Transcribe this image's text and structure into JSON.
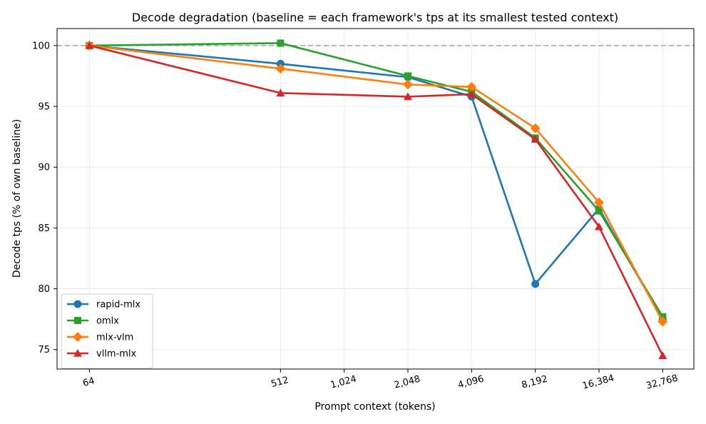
{
  "chart_data": {
    "type": "line",
    "title": "Decode degradation (baseline = each framework's tps at its smallest tested context)",
    "xlabel": "Prompt context (tokens)",
    "ylabel": "Decode tps (% of own baseline)",
    "x_scale": "log2",
    "xlim": [
      45,
      46000
    ],
    "ylim": [
      73.4,
      101.4
    ],
    "x_ticks": [
      64,
      512,
      1024,
      2048,
      4096,
      8192,
      16384,
      32768
    ],
    "x_tick_labels": [
      "64",
      "512",
      "1,024",
      "2,048",
      "4,096",
      "8,192",
      "16,384",
      "32,768"
    ],
    "y_ticks": [
      75,
      80,
      85,
      90,
      95,
      100
    ],
    "y_tick_labels": [
      "75",
      "80",
      "85",
      "90",
      "95",
      "100"
    ],
    "grid": true,
    "legend_position": "lower-left",
    "reference_line": {
      "y": 100,
      "style": "dashed",
      "color": "#aaaaaa"
    },
    "series": [
      {
        "name": "rapid-mlx",
        "color": "#1f77b4",
        "marker": "circle",
        "x": [
          64,
          512,
          2048,
          4096,
          8192,
          16384,
          32768
        ],
        "y": [
          100.0,
          98.5,
          97.4,
          95.8,
          80.4,
          86.6,
          77.5
        ]
      },
      {
        "name": "omlx",
        "color": "#2ca02c",
        "marker": "square",
        "x": [
          64,
          512,
          2048,
          4096,
          8192,
          16384,
          32768
        ],
        "y": [
          100.0,
          100.2,
          97.5,
          96.2,
          92.4,
          86.4,
          77.7
        ]
      },
      {
        "name": "mlx-vlm",
        "color": "#ff7f0e",
        "marker": "diamond",
        "x": [
          64,
          512,
          2048,
          4096,
          8192,
          16384,
          32768
        ],
        "y": [
          100.0,
          98.1,
          96.8,
          96.6,
          93.2,
          87.1,
          77.3
        ]
      },
      {
        "name": "vllm-mlx",
        "color": "#d62728",
        "marker": "triangle",
        "x": [
          64,
          512,
          2048,
          4096,
          8192,
          16384,
          32768
        ],
        "y": [
          100.0,
          96.1,
          95.8,
          96.0,
          92.3,
          85.1,
          74.5
        ]
      }
    ]
  }
}
